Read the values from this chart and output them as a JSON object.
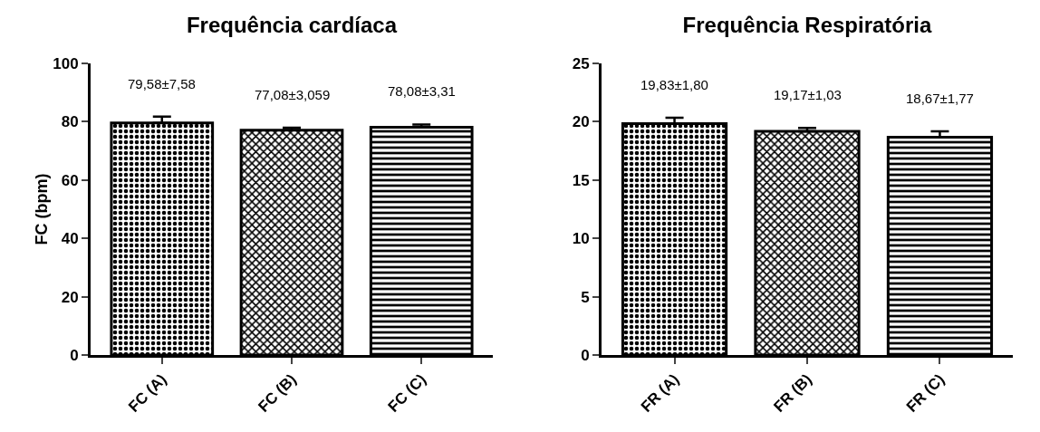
{
  "chart_data": [
    {
      "type": "bar",
      "title": "Frequência cardíaca",
      "ylabel": "FC (bpm)",
      "categories": [
        "FC (A)",
        "FC (B)",
        "FC (C)"
      ],
      "values": [
        79.58,
        77.08,
        78.08
      ],
      "color": "#000000",
      "errors": [
        [
          79.58,
          81.77
        ],
        [
          77.08,
          77.96
        ],
        [
          78.08,
          79.04
        ]
      ],
      "value_labels": [
        "79,58±7,58",
        "77,08±3,059",
        "78,08±3,31"
      ],
      "ylim": [
        0,
        100
      ],
      "yticks": [
        0,
        20,
        40,
        60,
        80,
        100
      ]
    },
    {
      "type": "bar",
      "title": "Frequência Respiratória",
      "categories": [
        "FR (A)",
        "FR (B)",
        "FR (C)"
      ],
      "values": [
        19.83,
        19.17,
        18.67
      ],
      "color": "#000000",
      "errors": [
        [
          19.83,
          20.35
        ],
        [
          19.17,
          19.47
        ],
        [
          18.67,
          19.18
        ]
      ],
      "value_labels": [
        "19,83±1,80",
        "19,17±1,03",
        "18,67±1,77"
      ],
      "ylim": [
        0,
        25
      ],
      "yticks": [
        0,
        5,
        10,
        15,
        20,
        25
      ]
    }
  ]
}
